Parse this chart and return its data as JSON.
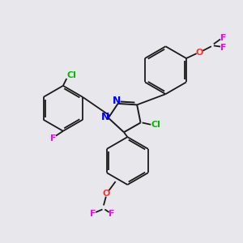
{
  "background_color": "#e8e8ec",
  "bond_color": "#1a1a1a",
  "atom_colors": {
    "N": "#0000ff",
    "Cl": "#00bb00",
    "F": "#ff00ff",
    "O": "#ff3333"
  },
  "font_size": 8.0,
  "lw": 1.3,
  "figsize": [
    3.0,
    3.0
  ],
  "dpi": 100
}
